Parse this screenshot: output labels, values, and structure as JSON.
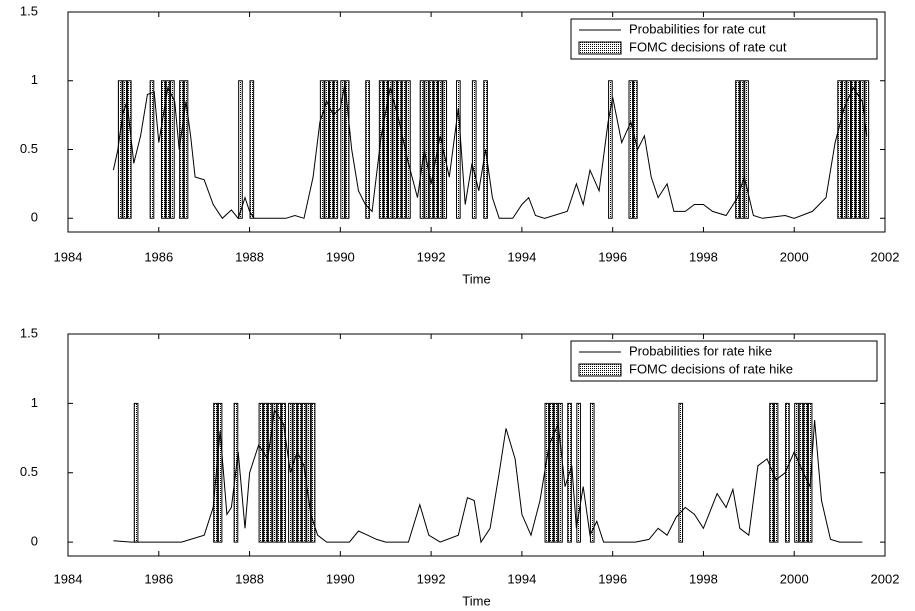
{
  "chart_data": [
    {
      "type": "line",
      "xlabel": "Time",
      "xlim": [
        1984,
        2002
      ],
      "xticks": [
        1984,
        1986,
        1988,
        1990,
        1992,
        1994,
        1996,
        1998,
        2000,
        2002
      ],
      "ylim": [
        -0.1,
        1.5
      ],
      "yticks": [
        0,
        0.5,
        1,
        1.5
      ],
      "legend": "upper right",
      "series": [
        {
          "name": "Probabilities for rate cut",
          "type": "line",
          "color": "#000000",
          "x": [
            1985.0,
            1985.1,
            1985.2,
            1985.3,
            1985.45,
            1985.6,
            1985.75,
            1985.9,
            1986.0,
            1986.1,
            1986.2,
            1986.35,
            1986.45,
            1986.6,
            1986.7,
            1986.8,
            1987.0,
            1987.2,
            1987.4,
            1987.6,
            1987.75,
            1987.9,
            1988.0,
            1988.1,
            1988.8,
            1989.0,
            1989.2,
            1989.4,
            1989.55,
            1989.7,
            1989.85,
            1990.0,
            1990.1,
            1990.25,
            1990.4,
            1990.55,
            1990.7,
            1990.9,
            1991.1,
            1991.3,
            1991.5,
            1991.7,
            1991.85,
            1992.0,
            1992.2,
            1992.4,
            1992.6,
            1992.75,
            1992.9,
            1993.05,
            1993.2,
            1993.35,
            1993.5,
            1993.8,
            1994.0,
            1994.15,
            1994.3,
            1994.5,
            1995.0,
            1995.2,
            1995.35,
            1995.5,
            1995.7,
            1995.9,
            1996.0,
            1996.2,
            1996.4,
            1996.55,
            1996.7,
            1996.85,
            1997.0,
            1997.2,
            1997.35,
            1997.6,
            1997.8,
            1998.0,
            1998.2,
            1998.5,
            1998.75,
            1998.9,
            1999.1,
            1999.3,
            1999.8,
            2000.0,
            2000.4,
            2000.7,
            2000.9,
            2001.1,
            2001.3,
            2001.5,
            2001.6
          ],
          "values": [
            0.35,
            0.5,
            0.75,
            0.85,
            0.4,
            0.6,
            0.9,
            0.92,
            0.55,
            0.75,
            0.95,
            0.85,
            0.5,
            0.85,
            0.6,
            0.3,
            0.28,
            0.1,
            0,
            0.06,
            0,
            0.15,
            0.05,
            0,
            0,
            0.02,
            0,
            0.3,
            0.7,
            0.85,
            0.75,
            0.8,
            0.98,
            0.5,
            0.2,
            0.1,
            0.05,
            0.6,
            0.95,
            0.7,
            0.4,
            0.15,
            0.5,
            0.25,
            0.6,
            0.3,
            0.8,
            0.1,
            0.4,
            0.2,
            0.5,
            0.15,
            0,
            0,
            0.1,
            0.15,
            0.02,
            0,
            0.05,
            0.25,
            0.1,
            0.35,
            0.2,
            0.7,
            0.88,
            0.55,
            0.7,
            0.5,
            0.6,
            0.3,
            0.15,
            0.25,
            0.05,
            0.05,
            0.1,
            0.1,
            0.05,
            0.02,
            0.15,
            0.3,
            0.02,
            0,
            0.02,
            0,
            0.05,
            0.15,
            0.55,
            0.8,
            0.95,
            0.85,
            0.6
          ]
        },
        {
          "name": "FOMC decisions of rate cut",
          "type": "bar",
          "color": "#000000",
          "x": [
            1985.15,
            1985.25,
            1985.35,
            1985.85,
            1986.1,
            1986.2,
            1986.3,
            1986.5,
            1986.6,
            1987.8,
            1988.05,
            1989.6,
            1989.7,
            1989.8,
            1989.9,
            1990.05,
            1990.15,
            1990.6,
            1990.9,
            1991.0,
            1991.1,
            1991.2,
            1991.3,
            1991.4,
            1991.5,
            1991.8,
            1991.9,
            1992.0,
            1992.1,
            1992.2,
            1992.3,
            1992.6,
            1992.95,
            1993.2,
            1995.95,
            1996.4,
            1996.5,
            1998.75,
            1998.85,
            1998.95,
            2001.0,
            2001.1,
            2001.2,
            2001.3,
            2001.4,
            2001.5,
            2001.6
          ],
          "values": [
            1,
            1,
            1,
            1,
            1,
            1,
            1,
            1,
            1,
            1,
            1,
            1,
            1,
            1,
            1,
            1,
            1,
            1,
            1,
            1,
            1,
            1,
            1,
            1,
            1,
            1,
            1,
            1,
            1,
            1,
            1,
            1,
            1,
            1,
            1,
            1,
            1,
            1,
            1,
            1,
            1,
            1,
            1,
            1,
            1,
            1,
            1
          ]
        }
      ]
    },
    {
      "type": "line",
      "xlabel": "Time",
      "xlim": [
        1984,
        2002
      ],
      "xticks": [
        1984,
        1986,
        1988,
        1990,
        1992,
        1994,
        1996,
        1998,
        2000,
        2002
      ],
      "ylim": [
        -0.1,
        1.5
      ],
      "yticks": [
        0,
        0.5,
        1,
        1.5
      ],
      "legend": "upper right",
      "series": [
        {
          "name": "Probabilities for rate hike",
          "type": "line",
          "color": "#000000",
          "x": [
            1985.0,
            1985.4,
            1986.5,
            1987.0,
            1987.2,
            1987.35,
            1987.5,
            1987.6,
            1987.75,
            1987.9,
            1988.0,
            1988.2,
            1988.4,
            1988.55,
            1988.75,
            1988.9,
            1989.05,
            1989.2,
            1989.35,
            1989.5,
            1989.7,
            1990.2,
            1990.4,
            1990.6,
            1990.8,
            1991.0,
            1991.5,
            1991.75,
            1991.95,
            1992.2,
            1992.6,
            1992.8,
            1992.95,
            1993.1,
            1993.3,
            1993.5,
            1993.65,
            1993.85,
            1994.0,
            1994.2,
            1994.4,
            1994.6,
            1994.8,
            1994.95,
            1995.1,
            1995.2,
            1995.35,
            1995.5,
            1995.65,
            1995.8,
            1996.5,
            1996.8,
            1997.0,
            1997.2,
            1997.4,
            1997.6,
            1997.8,
            1998.0,
            1998.3,
            1998.5,
            1998.65,
            1998.8,
            1999.0,
            1999.2,
            1999.4,
            1999.6,
            1999.8,
            2000.0,
            2000.2,
            2000.35,
            2000.45,
            2000.6,
            2000.8,
            2001.0,
            2001.5
          ],
          "values": [
            0.01,
            0,
            0,
            0.05,
            0.25,
            0.8,
            0.2,
            0.25,
            0.65,
            0.1,
            0.5,
            0.7,
            0.6,
            0.95,
            0.85,
            0.5,
            0.65,
            0.55,
            0.2,
            0.05,
            0,
            0,
            0.08,
            0.05,
            0.02,
            0,
            0,
            0.27,
            0.05,
            0,
            0.05,
            0.32,
            0.3,
            0,
            0.1,
            0.5,
            0.82,
            0.6,
            0.2,
            0.05,
            0.3,
            0.7,
            0.85,
            0.4,
            0.55,
            0.1,
            0.4,
            0.05,
            0.15,
            0,
            0,
            0.02,
            0.1,
            0.05,
            0.18,
            0.25,
            0.2,
            0.1,
            0.35,
            0.25,
            0.38,
            0.1,
            0.05,
            0.55,
            0.6,
            0.45,
            0.5,
            0.65,
            0.5,
            0.4,
            0.88,
            0.3,
            0.02,
            0,
            0
          ]
        },
        {
          "name": "FOMC decisions of rate hike",
          "type": "bar",
          "color": "#000000",
          "x": [
            1985.5,
            1987.25,
            1987.35,
            1987.7,
            1988.25,
            1988.35,
            1988.45,
            1988.55,
            1988.65,
            1988.75,
            1988.9,
            1989.0,
            1989.1,
            1989.2,
            1989.3,
            1989.4,
            1994.55,
            1994.65,
            1994.75,
            1994.85,
            1995.05,
            1995.25,
            1995.55,
            1997.5,
            1999.5,
            1999.6,
            1999.85,
            2000.05,
            2000.15,
            2000.25,
            2000.35
          ],
          "values": [
            1,
            1,
            1,
            1,
            1,
            1,
            1,
            1,
            1,
            1,
            1,
            1,
            1,
            1,
            1,
            1,
            1,
            1,
            1,
            1,
            1,
            1,
            1,
            1,
            1,
            1,
            1,
            1,
            1,
            1,
            1
          ]
        }
      ]
    }
  ]
}
